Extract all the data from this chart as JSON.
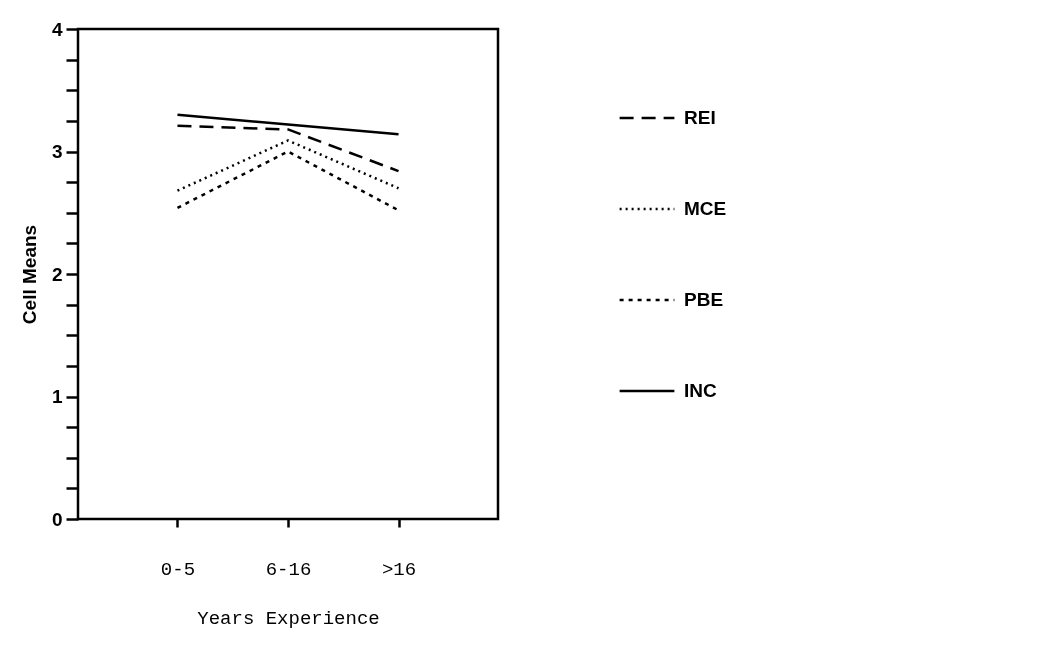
{
  "chart_data": {
    "type": "line",
    "xlabel": "Years Experience",
    "ylabel": "Cell Means",
    "categories": [
      "0-5",
      "6-16",
      ">16"
    ],
    "ylim": [
      0,
      4
    ],
    "yticks": [
      0,
      {
        "value": 0.25,
        "label": null
      },
      {
        "value": 0.5,
        "label": null
      },
      {
        "value": 0.75,
        "label": null
      },
      1,
      {
        "value": 1.25,
        "label": null
      },
      {
        "value": 1.5,
        "label": null
      },
      {
        "value": 1.75,
        "label": null
      },
      2,
      {
        "value": 2.25,
        "label": null
      },
      {
        "value": 2.5,
        "label": null
      },
      {
        "value": 2.75,
        "label": null
      },
      3,
      {
        "value": 3.25,
        "label": null
      },
      {
        "value": 3.5,
        "label": null
      },
      {
        "value": 3.75,
        "label": null
      },
      4
    ],
    "series": [
      {
        "name": "REI",
        "color": "#000000",
        "line_style": "dashed",
        "values": [
          3.21,
          3.18,
          2.84
        ]
      },
      {
        "name": "MCE",
        "color": "#000000",
        "line_style": "dotted",
        "values": [
          2.68,
          3.09,
          2.7
        ]
      },
      {
        "name": "PBE",
        "color": "#000000",
        "line_style": "sparse-dotted",
        "values": [
          2.54,
          3.0,
          2.52
        ]
      },
      {
        "name": "INC",
        "color": "#000000",
        "line_style": "solid",
        "values": [
          3.3,
          3.22,
          3.14
        ]
      }
    ],
    "legend": "right",
    "grid": false,
    "marker": "none"
  }
}
